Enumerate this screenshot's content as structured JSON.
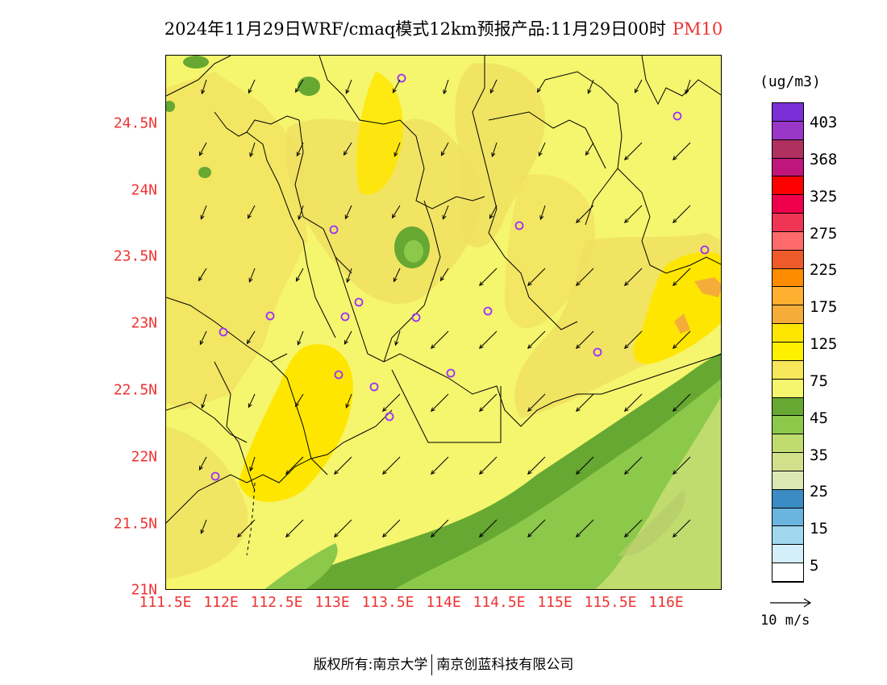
{
  "title": {
    "main": "2024年11月29日WRF/cmaq模式12km预报产品:11月29日00时",
    "species": "PM10"
  },
  "axes": {
    "lat_labels": [
      "24.5N",
      "24N",
      "23.5N",
      "23N",
      "22.5N",
      "22N",
      "21.5N",
      "21N"
    ],
    "lon_labels": [
      "111.5E",
      "112E",
      "112.5E",
      "113E",
      "113.5E",
      "114E",
      "114.5E",
      "115E",
      "115.5E",
      "116E"
    ]
  },
  "colorbar": {
    "unit": "(ug/m3)",
    "labels": [
      "403",
      "368",
      "325",
      "275",
      "225",
      "175",
      "125",
      "75",
      "45",
      "35",
      "25",
      "15",
      "5"
    ],
    "colors": [
      "#7b2fd6",
      "#9a37c8",
      "#b03060",
      "#c0157a",
      "#ff0000",
      "#f0004c",
      "#ef3454",
      "#ff6a6a",
      "#ee5a2a",
      "#ff8c00",
      "#ffb030",
      "#f5ad3a",
      "#ffe600",
      "#fff000",
      "#f5e65a",
      "#f5f56e",
      "#66a832",
      "#8cc84a",
      "#c0dc6e",
      "#d2e08c",
      "#dce8b4",
      "#3b8cc4",
      "#6cb4e0",
      "#a0d8f0",
      "#d4eefa",
      "#ffffff"
    ]
  },
  "wind_ref": {
    "label": "10 m/s"
  },
  "footer": {
    "left": "版权所有:南京大学",
    "right": "南京创蓝科技有限公司"
  },
  "map": {
    "region": "Guangdong / South China coast",
    "lon_range": [
      111.5,
      116.5
    ],
    "lat_range": [
      21.0,
      25.0
    ],
    "shading_colors": {
      "pm_75_125": "#f5e65a",
      "pm_below_75": "#f5f56e",
      "pm_125_175": "#ffe600",
      "pm_175_225": "#f5ad3a",
      "pm_35_45": "#8cc84a",
      "pm_45_75": "#66a832",
      "pm_25_35": "#c0dc6e"
    }
  }
}
